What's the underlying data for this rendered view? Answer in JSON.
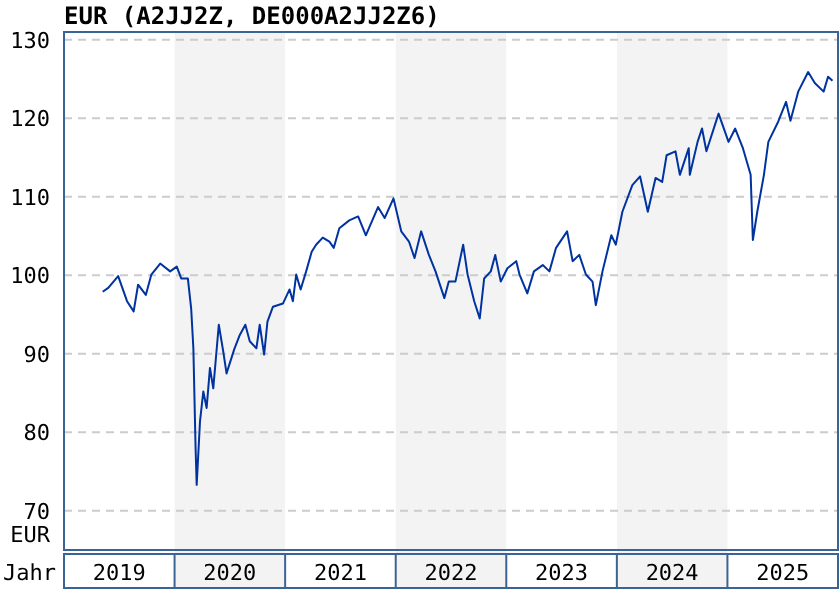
{
  "chart_data": {
    "type": "line",
    "title": "EUR (A2JJ2Z, DE000A2JJ2Z6)",
    "xlabel": "Jahr",
    "ylabel": "EUR",
    "x": [
      2019.35,
      2019.4,
      2019.49,
      2019.57,
      2019.63,
      2019.67,
      2019.74,
      2019.79,
      2019.87,
      2019.96,
      2020.02,
      2020.06,
      2020.12,
      2020.15,
      2020.17,
      2020.19,
      2020.2,
      2020.23,
      2020.26,
      2020.29,
      2020.32,
      2020.35,
      2020.4,
      2020.44,
      2020.47,
      2020.54,
      2020.59,
      2020.64,
      2020.68,
      2020.74,
      2020.77,
      2020.81,
      2020.84,
      2020.89,
      2020.98,
      2021.04,
      2021.07,
      2021.1,
      2021.14,
      2021.19,
      2021.24,
      2021.28,
      2021.34,
      2021.4,
      2021.44,
      2021.49,
      2021.58,
      2021.66,
      2021.73,
      2021.84,
      2021.9,
      2021.98,
      2022.05,
      2022.12,
      2022.17,
      2022.23,
      2022.3,
      2022.36,
      2022.44,
      2022.48,
      2022.54,
      2022.61,
      2022.65,
      2022.71,
      2022.76,
      2022.8,
      2022.86,
      2022.9,
      2022.95,
      2023.01,
      2023.09,
      2023.12,
      2023.19,
      2023.25,
      2023.33,
      2023.39,
      2023.45,
      2023.55,
      2023.6,
      2023.66,
      2023.72,
      2023.78,
      2023.81,
      2023.87,
      2023.95,
      2023.99,
      2024.05,
      2024.14,
      2024.21,
      2024.28,
      2024.35,
      2024.41,
      2024.45,
      2024.53,
      2024.57,
      2024.65,
      2024.66,
      2024.73,
      2024.77,
      2024.81,
      2024.92,
      2025.01,
      2025.07,
      2025.14,
      2025.21,
      2025.23,
      2025.27,
      2025.33,
      2025.37,
      2025.46,
      2025.53,
      2025.57,
      2025.64,
      2025.73,
      2025.79,
      2025.87,
      2025.91,
      2025.95
    ],
    "series": [
      {
        "color": "#0033a0",
        "values": [
          97.9,
          98.4,
          99.9,
          96.7,
          95.4,
          98.8,
          97.5,
          100.1,
          101.5,
          100.5,
          101.1,
          99.6,
          99.6,
          95.8,
          90.7,
          78.0,
          73.3,
          81.4,
          85.2,
          83.1,
          88.2,
          85.6,
          93.7,
          90.3,
          87.5,
          90.6,
          92.4,
          93.7,
          91.6,
          90.7,
          93.7,
          89.9,
          94.1,
          96.0,
          96.4,
          98.2,
          96.7,
          100.1,
          98.2,
          100.5,
          103.0,
          103.9,
          104.8,
          104.3,
          103.5,
          106.0,
          107.0,
          107.5,
          105.1,
          108.7,
          107.3,
          109.8,
          105.6,
          104.3,
          102.2,
          105.6,
          102.6,
          100.5,
          97.1,
          99.2,
          99.2,
          103.9,
          100.1,
          96.7,
          94.5,
          99.6,
          100.5,
          102.6,
          99.2,
          100.9,
          101.8,
          100.1,
          97.7,
          100.5,
          101.3,
          100.5,
          103.5,
          105.6,
          101.8,
          102.6,
          100.1,
          99.2,
          96.2,
          100.5,
          105.1,
          103.9,
          108.1,
          111.5,
          112.6,
          108.1,
          112.4,
          111.9,
          115.3,
          115.8,
          112.8,
          116.2,
          112.8,
          117.0,
          118.7,
          115.8,
          120.6,
          117.0,
          118.7,
          116.2,
          112.8,
          104.5,
          108.1,
          112.8,
          117.0,
          119.6,
          122.1,
          119.7,
          123.4,
          125.9,
          124.5,
          123.4,
          125.3,
          124.8
        ]
      }
    ],
    "xlim": [
      2019,
      2026
    ],
    "ylim": [
      65,
      131
    ],
    "xticks": [
      {
        "value": 2019.5,
        "label": "2019"
      },
      {
        "value": 2020.5,
        "label": "2020"
      },
      {
        "value": 2021.5,
        "label": "2021"
      },
      {
        "value": 2022.5,
        "label": "2022"
      },
      {
        "value": 2023.5,
        "label": "2023"
      },
      {
        "value": 2024.5,
        "label": "2024"
      },
      {
        "value": 2025.5,
        "label": "2025"
      }
    ],
    "yticks": [
      70,
      80,
      90,
      100,
      110,
      120,
      130
    ],
    "bands": [
      {
        "axis": "x",
        "from": 2020,
        "to": 2021,
        "color": "#f3f3f3"
      },
      {
        "axis": "x",
        "from": 2022,
        "to": 2023,
        "color": "#f3f3f3"
      },
      {
        "axis": "x",
        "from": 2024,
        "to": 2025,
        "color": "#f3f3f3"
      }
    ],
    "grid": "y",
    "line_style": "solid",
    "marker": "none"
  }
}
